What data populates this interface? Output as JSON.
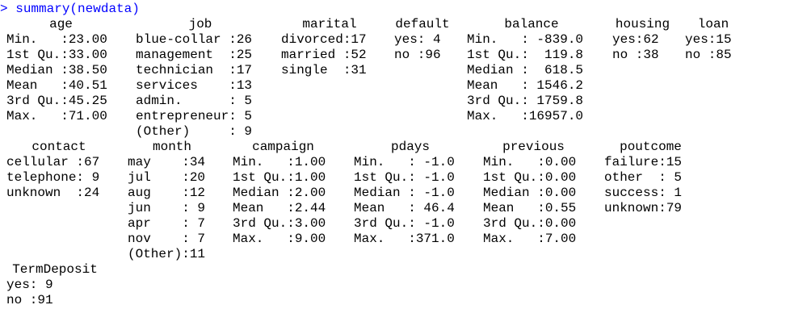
{
  "console": {
    "prompt": ">",
    "command": "summary(newdata)",
    "prompt_color": "#0000ff",
    "output_color": "#000000"
  },
  "block1": {
    "headers": [
      "age",
      "job",
      "marital",
      "default",
      "balance",
      "housing",
      "loan"
    ],
    "rows": [
      [
        "Min.   :23.00",
        "blue-collar :26",
        "divorced:17",
        "yes: 4",
        "Min.   : -839.0",
        "yes:62",
        "yes:15"
      ],
      [
        "1st Qu.:33.00",
        "management  :25",
        "married :52",
        "no :96",
        "1st Qu.:  119.8",
        "no :38",
        "no :85"
      ],
      [
        "Median :38.50",
        "technician  :17",
        "single  :31",
        "",
        "Median :  618.5",
        "",
        ""
      ],
      [
        "Mean   :40.51",
        "services    :13",
        "",
        "",
        "Mean   : 1546.2",
        "",
        ""
      ],
      [
        "3rd Qu.:45.25",
        "admin.      : 5",
        "",
        "",
        "3rd Qu.: 1759.8",
        "",
        ""
      ],
      [
        "Max.   :71.00",
        "entrepreneur: 5",
        "",
        "",
        "Max.   :16957.0",
        "",
        ""
      ],
      [
        "",
        "(Other)     : 9",
        "",
        "",
        "",
        "",
        ""
      ]
    ]
  },
  "block2": {
    "headers": [
      "contact",
      "month",
      "campaign",
      "pdays",
      "previous",
      "poutcome"
    ],
    "rows": [
      [
        "cellular :67",
        "may    :34",
        "Min.   :1.00",
        "Min.   : -1.0",
        "Min.   :0.00",
        "failure:15"
      ],
      [
        "telephone: 9",
        "jul    :20",
        "1st Qu.:1.00",
        "1st Qu.: -1.0",
        "1st Qu.:0.00",
        "other  : 5"
      ],
      [
        "unknown  :24",
        "aug    :12",
        "Median :2.00",
        "Median : -1.0",
        "Median :0.00",
        "success: 1"
      ],
      [
        "",
        "jun    : 9",
        "Mean   :2.44",
        "Mean   : 46.4",
        "Mean   :0.55",
        "unknown:79"
      ],
      [
        "",
        "apr    : 7",
        "3rd Qu.:3.00",
        "3rd Qu.: -1.0",
        "3rd Qu.:0.00",
        ""
      ],
      [
        "",
        "nov    : 7",
        "Max.   :9.00",
        "Max.   :371.0",
        "Max.   :7.00",
        ""
      ],
      [
        "",
        "(Other):11",
        "",
        "",
        "",
        ""
      ]
    ]
  },
  "block3": {
    "headers": [
      "TermDeposit"
    ],
    "rows": [
      [
        "yes: 9"
      ],
      [
        "no :91"
      ]
    ]
  }
}
